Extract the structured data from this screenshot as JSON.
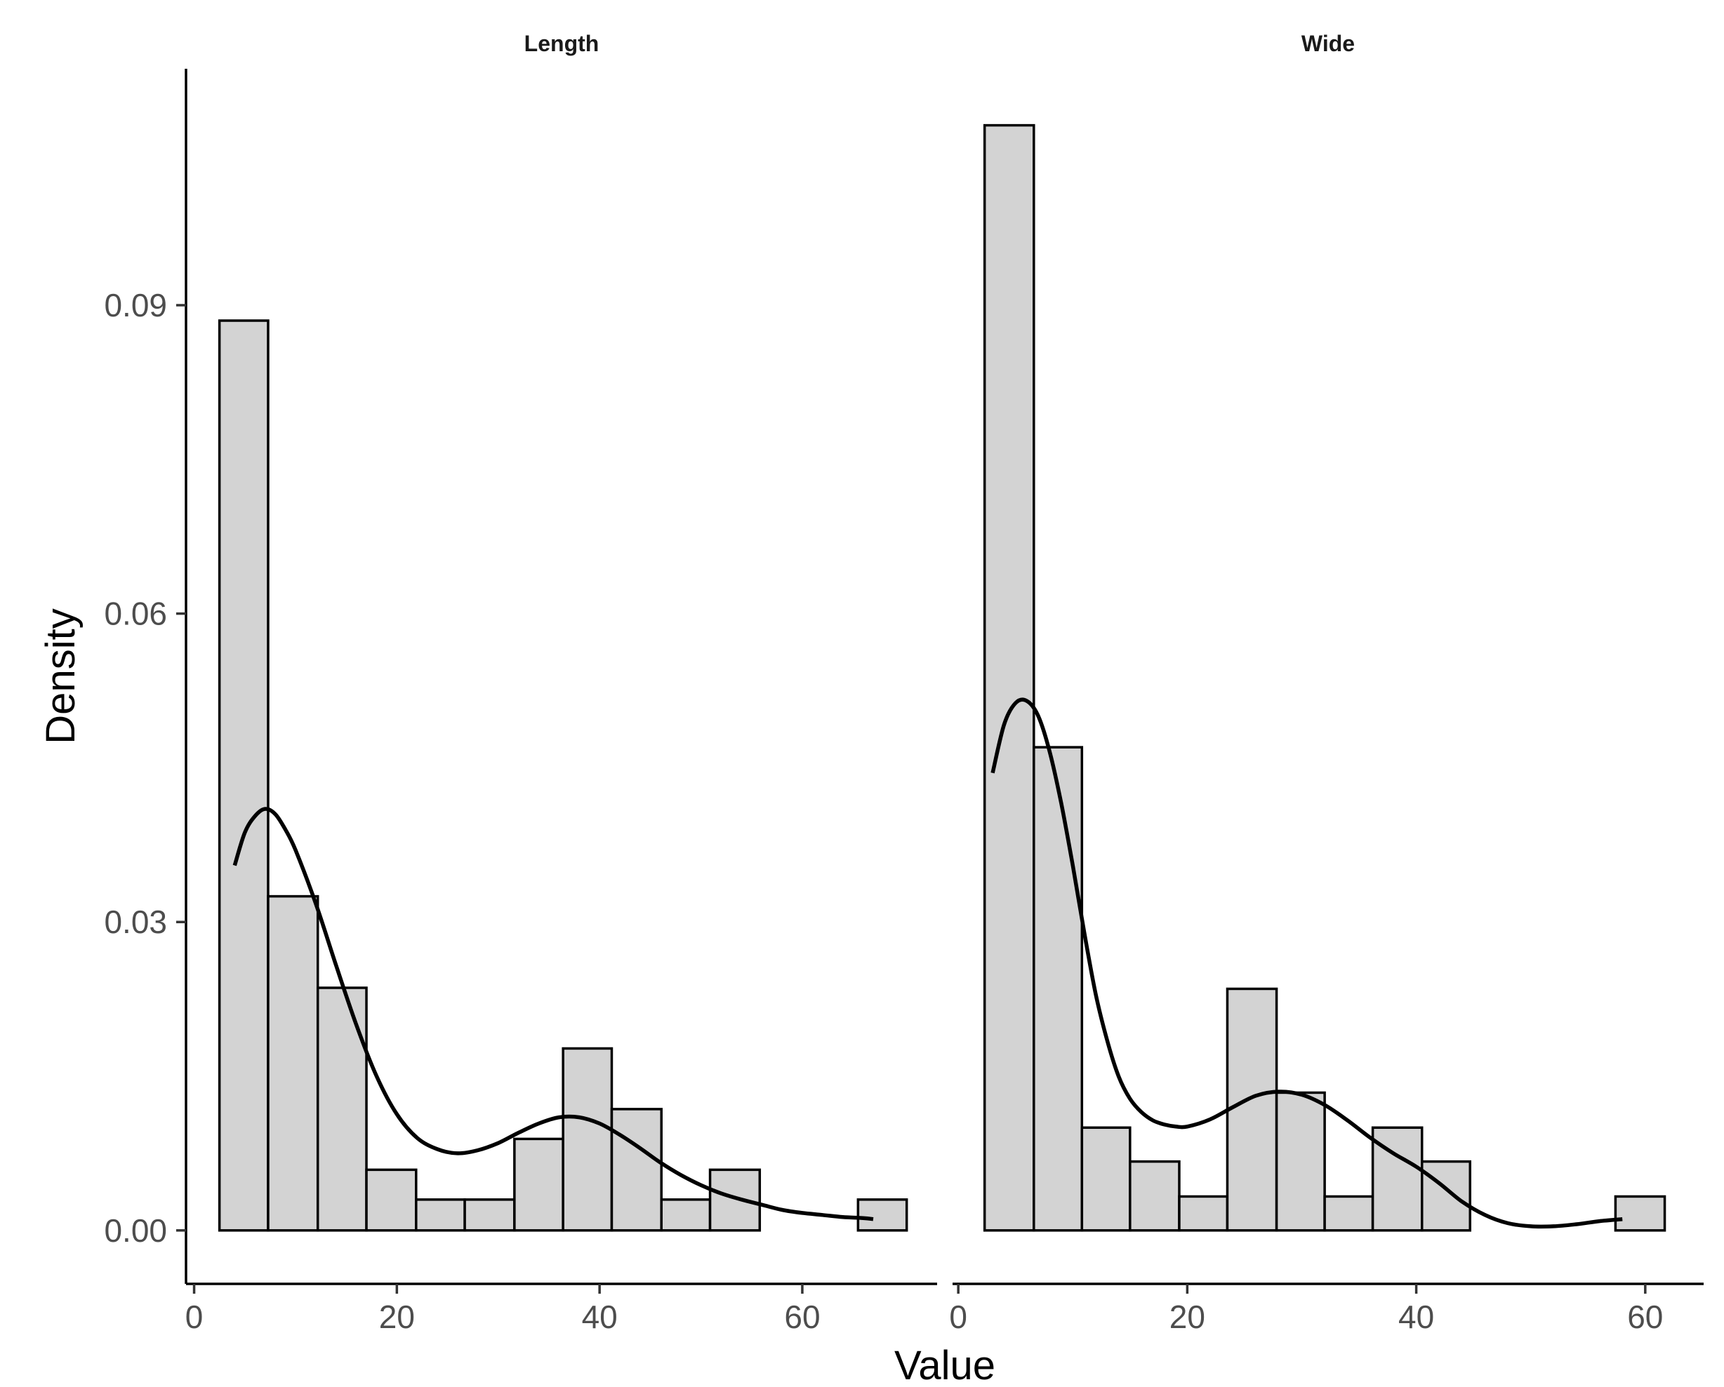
{
  "chart_data": {
    "type": "histogram",
    "xlabel": "Value",
    "ylabel": "Density",
    "ylim": [
      -0.0052,
      0.113
    ],
    "yticks": [
      0.0,
      0.03,
      0.06,
      0.09
    ],
    "ytick_labels": [
      "0.00",
      "0.03",
      "0.06",
      "0.09"
    ],
    "grid": false,
    "bar_fill": "#d3d3d3",
    "bar_outline": "#000000",
    "line_color": "#000000",
    "panels": [
      {
        "name": "length",
        "title": "Length",
        "xlim": [
          -0.8,
          73.3
        ],
        "xticks": [
          0,
          20,
          40,
          60
        ],
        "xtick_labels": [
          "0",
          "20",
          "40",
          "60"
        ],
        "bins": [
          {
            "x0": 2.5,
            "x1": 7.3,
            "density": 0.0885
          },
          {
            "x0": 7.3,
            "x1": 12.2,
            "density": 0.0325
          },
          {
            "x0": 12.2,
            "x1": 17.0,
            "density": 0.0236
          },
          {
            "x0": 17.0,
            "x1": 21.9,
            "density": 0.0059
          },
          {
            "x0": 21.9,
            "x1": 26.7,
            "density": 0.003
          },
          {
            "x0": 26.7,
            "x1": 31.6,
            "density": 0.003
          },
          {
            "x0": 31.6,
            "x1": 36.4,
            "density": 0.0089
          },
          {
            "x0": 36.4,
            "x1": 41.2,
            "density": 0.0177
          },
          {
            "x0": 41.2,
            "x1": 46.1,
            "density": 0.0118
          },
          {
            "x0": 46.1,
            "x1": 50.9,
            "density": 0.003
          },
          {
            "x0": 50.9,
            "x1": 55.8,
            "density": 0.0059
          },
          {
            "x0": 55.8,
            "x1": 60.6,
            "density": 0.0
          },
          {
            "x0": 60.6,
            "x1": 65.5,
            "density": 0.0
          },
          {
            "x0": 65.5,
            "x1": 70.3,
            "density": 0.003
          }
        ],
        "density_curve": {
          "x": [
            4,
            5,
            6,
            7,
            8,
            9,
            10,
            12,
            14,
            16,
            18,
            20,
            22,
            24,
            26,
            28,
            30,
            32,
            34,
            36,
            38,
            40,
            42,
            44,
            46,
            48,
            50,
            52,
            54,
            56,
            58,
            60,
            62,
            64,
            66,
            67
          ],
          "y": [
            0.0355,
            0.0387,
            0.0403,
            0.041,
            0.0405,
            0.039,
            0.037,
            0.0318,
            0.0258,
            0.02,
            0.015,
            0.0113,
            0.009,
            0.0079,
            0.0075,
            0.0078,
            0.0085,
            0.0095,
            0.0104,
            0.011,
            0.011,
            0.0104,
            0.0093,
            0.008,
            0.0066,
            0.0054,
            0.0044,
            0.0036,
            0.003,
            0.0025,
            0.002,
            0.0017,
            0.0015,
            0.0013,
            0.0012,
            0.0011
          ]
        }
      },
      {
        "name": "wide",
        "title": "Wide",
        "xlim": [
          -0.5,
          65.1
        ],
        "xticks": [
          0,
          20,
          40,
          60
        ],
        "xtick_labels": [
          "0",
          "20",
          "40",
          "60"
        ],
        "bins": [
          {
            "x0": 2.3,
            "x1": 6.6,
            "density": 0.1075
          },
          {
            "x0": 6.6,
            "x1": 10.8,
            "density": 0.047
          },
          {
            "x0": 10.8,
            "x1": 15.0,
            "density": 0.01
          },
          {
            "x0": 15.0,
            "x1": 19.3,
            "density": 0.0067
          },
          {
            "x0": 19.3,
            "x1": 23.5,
            "density": 0.0033
          },
          {
            "x0": 23.5,
            "x1": 27.8,
            "density": 0.0235
          },
          {
            "x0": 27.8,
            "x1": 32.0,
            "density": 0.0134
          },
          {
            "x0": 32.0,
            "x1": 36.2,
            "density": 0.0033
          },
          {
            "x0": 36.2,
            "x1": 40.5,
            "density": 0.01
          },
          {
            "x0": 40.5,
            "x1": 44.7,
            "density": 0.0067
          },
          {
            "x0": 44.7,
            "x1": 49.0,
            "density": 0.0
          },
          {
            "x0": 49.0,
            "x1": 53.2,
            "density": 0.0
          },
          {
            "x0": 53.2,
            "x1": 57.4,
            "density": 0.0
          },
          {
            "x0": 57.4,
            "x1": 61.7,
            "density": 0.0033
          }
        ],
        "density_curve": {
          "x": [
            3,
            4,
            5,
            6,
            7,
            8,
            9,
            10,
            11,
            12,
            13,
            14,
            15,
            16,
            17,
            18,
            19,
            20,
            22,
            24,
            26,
            28,
            30,
            32,
            34,
            36,
            38,
            40,
            42,
            44,
            46,
            48,
            50,
            52,
            54,
            56,
            58
          ],
          "y": [
            0.0445,
            0.0492,
            0.0513,
            0.0515,
            0.05,
            0.0465,
            0.0415,
            0.0355,
            0.029,
            0.023,
            0.0185,
            0.015,
            0.0128,
            0.0115,
            0.0107,
            0.0103,
            0.0101,
            0.0101,
            0.0108,
            0.012,
            0.0131,
            0.0135,
            0.0132,
            0.0122,
            0.0107,
            0.009,
            0.0075,
            0.0062,
            0.0046,
            0.0028,
            0.0015,
            0.0007,
            0.0004,
            0.0004,
            0.0006,
            0.0009,
            0.0011
          ]
        }
      }
    ]
  }
}
